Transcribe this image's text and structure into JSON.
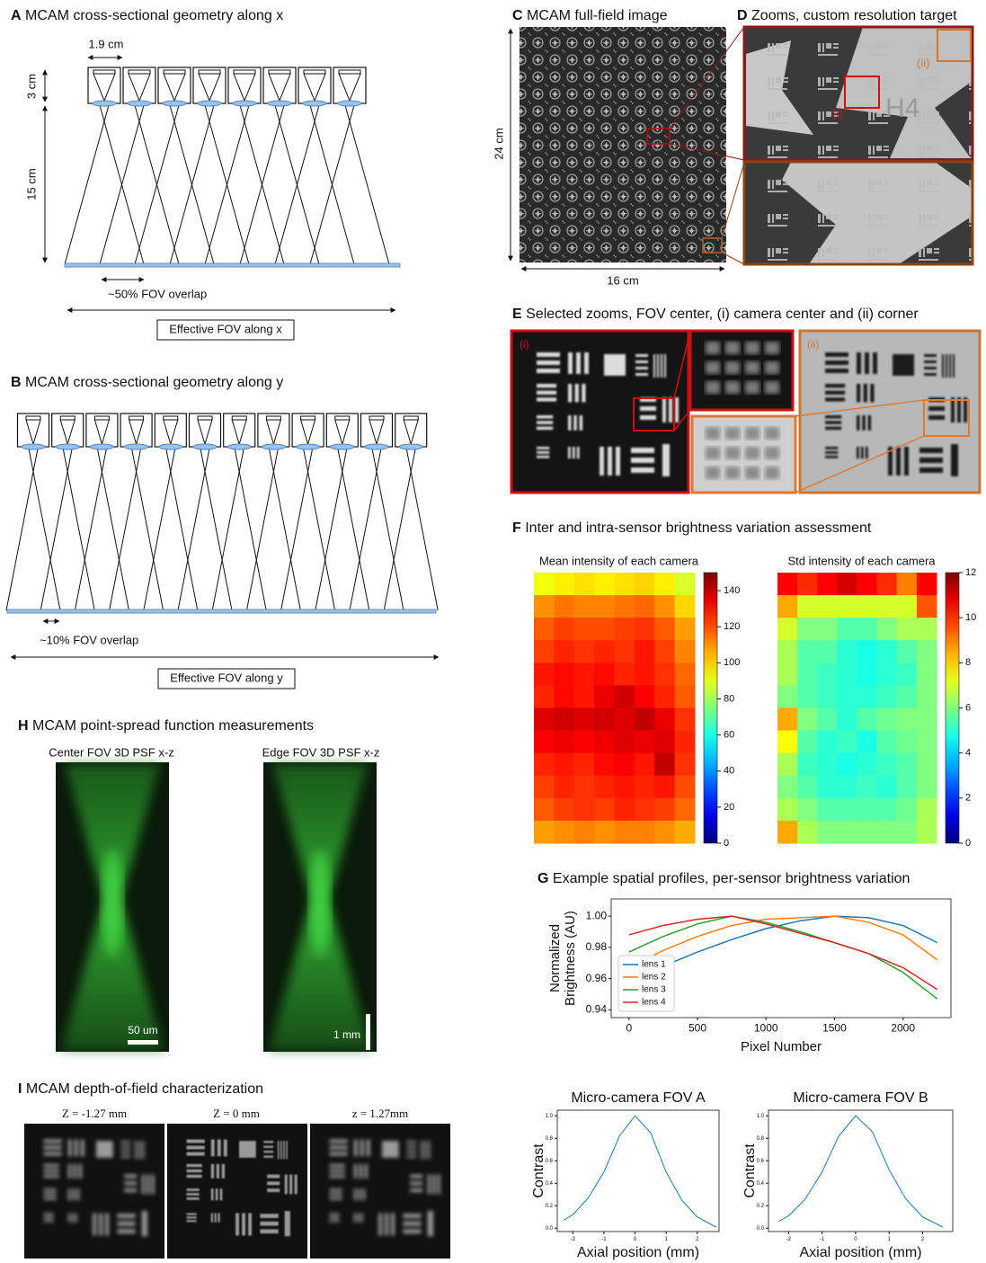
{
  "panels": {
    "A": {
      "letter": "A",
      "title": "MCAM cross-sectional geometry along x",
      "width_label": "1.9 cm",
      "height_label": "3 cm",
      "distance_label": "15 cm",
      "overlap_label": "~50% FOV overlap",
      "fov_label": "Effective FOV along x"
    },
    "B": {
      "letter": "B",
      "title": "MCAM cross-sectional geometry along y",
      "overlap_label": "~10% FOV overlap",
      "fov_label": "Effective FOV along y"
    },
    "C": {
      "letter": "C",
      "title": "MCAM full-field image",
      "height_label": "24 cm",
      "width_label": "16 cm"
    },
    "D": {
      "letter": "D",
      "title": "Zooms, custom resolution target",
      "labels": [
        "(i)",
        "(ii)"
      ],
      "group_label": "H4"
    },
    "E": {
      "letter": "E",
      "title": "Selected zooms, FOV center, (i) camera center and (ii) corner",
      "labels": [
        "(i)",
        "(ii)"
      ]
    },
    "F": {
      "letter": "F",
      "title": "Inter and intra-sensor brightness variation assessment"
    },
    "G": {
      "letter": "G",
      "title": "Example spatial profiles, per-sensor brightness variation"
    },
    "H": {
      "letter": "H",
      "title": "MCAM point-spread function measurements",
      "subtitles": [
        "Center FOV 3D PSF x-z",
        "Edge FOV 3D PSF x-z"
      ],
      "scale_labels": [
        "50 um",
        "1 mm"
      ]
    },
    "I": {
      "letter": "I",
      "title": "MCAM depth-of-field characterization",
      "z_labels": [
        "Z = -1.27 mm",
        "Z = 0 mm",
        "z = 1.27mm"
      ]
    }
  },
  "chart_data": [
    {
      "type": "heatmap",
      "title": "Mean intensity of each camera",
      "colormap": "jet",
      "clim": [
        0,
        150
      ],
      "cticks": [
        0,
        20,
        40,
        60,
        80,
        100,
        120,
        140
      ],
      "values": [
        [
          92,
          96,
          98,
          96,
          98,
          100,
          96,
          88
        ],
        [
          110,
          114,
          112,
          112,
          114,
          116,
          110,
          100
        ],
        [
          118,
          122,
          120,
          120,
          122,
          124,
          118,
          108
        ],
        [
          122,
          126,
          124,
          126,
          124,
          128,
          122,
          112
        ],
        [
          128,
          130,
          128,
          130,
          126,
          128,
          124,
          116
        ],
        [
          126,
          130,
          128,
          134,
          138,
          132,
          126,
          118
        ],
        [
          136,
          138,
          136,
          138,
          136,
          140,
          134,
          124
        ],
        [
          132,
          134,
          132,
          134,
          136,
          134,
          136,
          126
        ],
        [
          126,
          128,
          126,
          130,
          132,
          128,
          140,
          124
        ],
        [
          122,
          126,
          124,
          126,
          128,
          126,
          128,
          120
        ],
        [
          118,
          122,
          124,
          122,
          126,
          124,
          122,
          116
        ],
        [
          108,
          110,
          112,
          110,
          112,
          112,
          110,
          106
        ]
      ]
    },
    {
      "type": "heatmap",
      "title": "Std intensity of each camera",
      "colormap": "jet",
      "clim": [
        0,
        12
      ],
      "cticks": [
        0,
        2,
        4,
        6,
        8,
        10,
        12
      ],
      "values": [
        [
          10.5,
          10,
          10.5,
          11,
          10.5,
          10,
          9,
          10.5
        ],
        [
          8.5,
          7,
          7,
          7,
          7,
          7,
          7,
          9.5
        ],
        [
          7,
          6,
          6,
          5.5,
          5.5,
          6,
          6.5,
          6.5
        ],
        [
          6.5,
          5.5,
          5.5,
          5,
          4.8,
          5,
          5.5,
          6
        ],
        [
          6.5,
          5.5,
          5.2,
          5,
          4.8,
          5,
          5.2,
          6
        ],
        [
          6,
          5.5,
          5.2,
          5,
          5,
          5.2,
          5.5,
          6
        ],
        [
          8.5,
          6,
          5.5,
          5,
          5.5,
          5.8,
          6,
          6
        ],
        [
          7.5,
          5.5,
          5,
          5.2,
          4.8,
          5.5,
          5.8,
          6
        ],
        [
          6.5,
          5.2,
          5,
          4.8,
          5,
          5.2,
          5.5,
          6
        ],
        [
          6,
          5.5,
          5,
          5,
          5.2,
          5,
          5.5,
          6
        ],
        [
          6.5,
          6,
          5.5,
          5.5,
          5.5,
          5.5,
          5.8,
          6.5
        ],
        [
          8.5,
          6.5,
          6,
          6,
          6,
          6,
          6,
          6.5
        ]
      ]
    },
    {
      "type": "line",
      "x_label": "Pixel Number",
      "y_label": [
        "Normalized",
        "Brightness (AU)"
      ],
      "legend": "upper left",
      "x": [
        0,
        250,
        500,
        750,
        1000,
        1250,
        1500,
        1750,
        2000,
        2250
      ],
      "series": [
        {
          "name": "lens 1",
          "color": "#1f77b4",
          "values": [
            0.96,
            0.968,
            0.977,
            0.985,
            0.992,
            0.997,
            1.0,
            0.999,
            0.994,
            0.983
          ]
        },
        {
          "name": "lens 2",
          "color": "#ff7f0e",
          "values": [
            0.967,
            0.978,
            0.987,
            0.994,
            0.998,
            0.999,
            1.0,
            0.996,
            0.988,
            0.972
          ]
        },
        {
          "name": "lens 3",
          "color": "#2ca02c",
          "values": [
            0.977,
            0.987,
            0.995,
            1.0,
            0.996,
            0.99,
            0.983,
            0.976,
            0.964,
            0.947
          ]
        },
        {
          "name": "lens 4",
          "color": "#d62728",
          "values": [
            0.988,
            0.994,
            0.998,
            1.0,
            0.995,
            0.989,
            0.983,
            0.976,
            0.967,
            0.953
          ]
        }
      ],
      "xlim": [
        -130,
        2350
      ],
      "ylim": [
        0.935,
        1.011
      ],
      "xticks": [
        0,
        500,
        1000,
        1500,
        2000
      ],
      "yticks": [
        0.94,
        0.96,
        0.98,
        {
          "value": 1.0,
          "label": "1.00"
        }
      ]
    },
    {
      "type": "line",
      "title": "Micro-camera FOV A",
      "x_label": "Axial position (mm)",
      "y_label": [
        "Contrast"
      ],
      "color": "#1f77b4",
      "x": [
        -2.3,
        -2,
        -1.5,
        -1,
        -0.5,
        0,
        0.5,
        1,
        1.5,
        2,
        2.6
      ],
      "values": [
        0.07,
        0.12,
        0.27,
        0.5,
        0.82,
        1.0,
        0.85,
        0.5,
        0.25,
        0.1,
        0.01
      ],
      "xlim": [
        -2.5,
        2.7
      ],
      "ylim": [
        -0.03,
        1.05
      ],
      "xticks": [
        -2,
        -1,
        0,
        1,
        2
      ],
      "yticks": [
        {
          "value": 0,
          "label": "0.0"
        },
        0.2,
        0.4,
        0.6,
        0.8,
        {
          "value": 1,
          "label": "1.0"
        }
      ]
    },
    {
      "type": "line",
      "title": "Micro-camera FOV B",
      "x_label": "Axial position (mm)",
      "y_label": [
        "Contrast"
      ],
      "color": "#1f77b4",
      "x": [
        -2.3,
        -2,
        -1.5,
        -1,
        -0.5,
        0,
        0.5,
        1,
        1.5,
        2,
        2.6
      ],
      "values": [
        0.06,
        0.11,
        0.26,
        0.5,
        0.82,
        1.0,
        0.86,
        0.52,
        0.26,
        0.1,
        0.01
      ],
      "xlim": [
        -2.6,
        2.9
      ],
      "ylim": [
        -0.03,
        1.05
      ],
      "xticks": [
        -2,
        -1,
        0,
        1,
        2
      ],
      "yticks": [
        {
          "value": 0,
          "label": "0.0"
        },
        0.2,
        0.4,
        0.6,
        0.8,
        {
          "value": 1,
          "label": "1.0"
        }
      ]
    }
  ]
}
